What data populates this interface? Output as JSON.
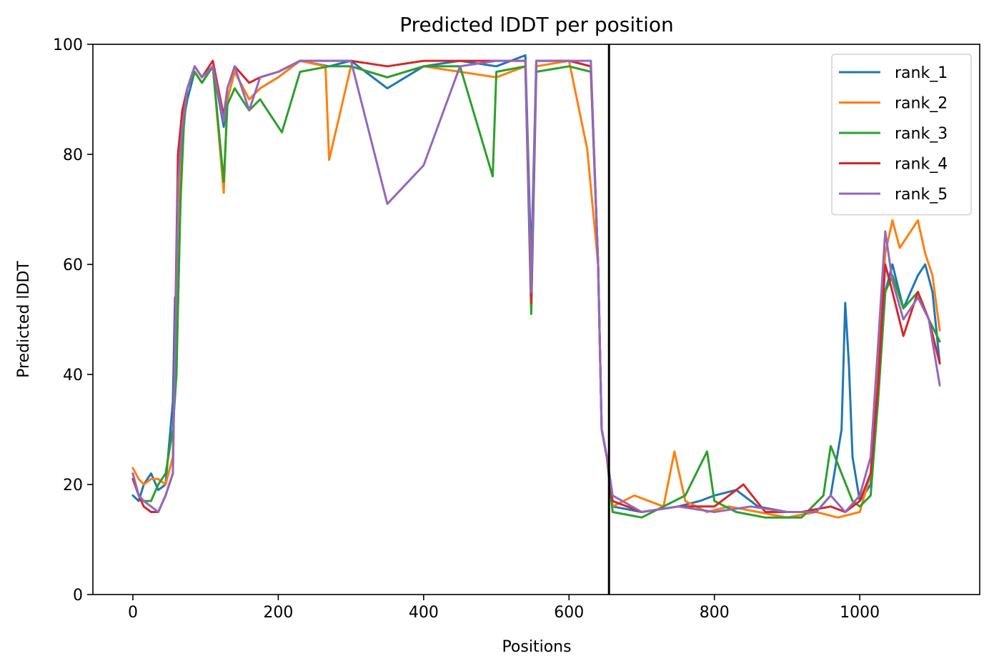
{
  "chart_data": {
    "type": "line",
    "title": "Predicted lDDT per position",
    "xlabel": "Positions",
    "ylabel": "Predicted lDDT",
    "xlim": [
      -55,
      1165
    ],
    "ylim": [
      0,
      100
    ],
    "xticks": [
      0,
      200,
      400,
      600,
      800,
      1000
    ],
    "yticks": [
      0,
      20,
      40,
      60,
      80,
      100
    ],
    "grid": false,
    "legend_position": "top-right",
    "vline": {
      "x": 655,
      "color": "#000000"
    },
    "series": [
      {
        "name": "rank_1",
        "color": "#1f77b4",
        "x": [
          0,
          8,
          15,
          25,
          35,
          45,
          55,
          58,
          62,
          68,
          75,
          85,
          95,
          110,
          125,
          130,
          140,
          160,
          175,
          200,
          230,
          270,
          300,
          350,
          400,
          450,
          500,
          540,
          548,
          555,
          600,
          630,
          640,
          645,
          652,
          660,
          700,
          750,
          780,
          800,
          830,
          860,
          900,
          940,
          960,
          975,
          980,
          985,
          990,
          1000,
          1015,
          1025,
          1035,
          1045,
          1060,
          1080,
          1090,
          1100,
          1110
        ],
        "y": [
          18,
          17,
          20,
          22,
          19,
          20,
          35,
          54,
          52,
          85,
          90,
          95,
          93,
          96,
          85,
          90,
          95,
          90,
          92,
          94,
          97,
          96,
          97,
          92,
          96,
          97,
          96,
          98,
          60,
          97,
          97,
          96,
          60,
          30,
          25,
          16,
          15,
          16,
          17,
          18,
          19,
          16,
          15,
          15,
          18,
          30,
          53,
          42,
          25,
          17,
          20,
          35,
          55,
          60,
          52,
          58,
          60,
          55,
          42
        ]
      },
      {
        "name": "rank_2",
        "color": "#ff7f0e",
        "x": [
          0,
          8,
          15,
          25,
          35,
          45,
          55,
          62,
          68,
          75,
          85,
          95,
          110,
          125,
          130,
          140,
          160,
          175,
          200,
          230,
          265,
          270,
          300,
          350,
          400,
          450,
          500,
          540,
          548,
          555,
          600,
          625,
          640,
          645,
          652,
          660,
          690,
          730,
          745,
          760,
          790,
          820,
          860,
          900,
          940,
          970,
          1000,
          1015,
          1025,
          1035,
          1045,
          1055,
          1065,
          1080,
          1090,
          1100,
          1110
        ],
        "y": [
          23,
          21,
          20,
          21,
          21,
          20,
          25,
          70,
          87,
          92,
          95,
          93,
          96,
          73,
          90,
          95,
          90,
          92,
          94,
          97,
          96,
          79,
          96,
          94,
          96,
          95,
          94,
          96,
          55,
          96,
          97,
          81,
          60,
          30,
          25,
          16,
          18,
          16,
          26,
          17,
          15,
          16,
          15,
          14,
          15,
          14,
          15,
          22,
          40,
          62,
          68,
          63,
          65,
          68,
          62,
          58,
          48
        ]
      },
      {
        "name": "rank_3",
        "color": "#2ca02c",
        "x": [
          0,
          8,
          15,
          25,
          35,
          45,
          55,
          60,
          65,
          70,
          75,
          85,
          95,
          110,
          125,
          130,
          140,
          160,
          175,
          205,
          230,
          270,
          300,
          350,
          400,
          450,
          495,
          500,
          540,
          548,
          555,
          600,
          630,
          640,
          645,
          652,
          660,
          700,
          760,
          790,
          800,
          830,
          870,
          920,
          950,
          960,
          975,
          990,
          1000,
          1015,
          1025,
          1035,
          1045,
          1060,
          1080,
          1095,
          1110
        ],
        "y": [
          22,
          18,
          17,
          17,
          20,
          22,
          30,
          40,
          70,
          85,
          92,
          95,
          93,
          96,
          75,
          89,
          92,
          88,
          90,
          84,
          95,
          96,
          96,
          94,
          96,
          96,
          76,
          95,
          96,
          51,
          95,
          96,
          95,
          60,
          30,
          25,
          15,
          14,
          18,
          26,
          17,
          15,
          14,
          14,
          18,
          27,
          22,
          17,
          16,
          18,
          35,
          55,
          58,
          52,
          55,
          50,
          46
        ]
      },
      {
        "name": "rank_4",
        "color": "#d62728",
        "x": [
          0,
          8,
          15,
          25,
          35,
          45,
          55,
          62,
          68,
          75,
          85,
          95,
          110,
          125,
          130,
          140,
          160,
          175,
          200,
          230,
          270,
          300,
          350,
          400,
          450,
          500,
          540,
          548,
          555,
          600,
          630,
          640,
          645,
          652,
          660,
          700,
          750,
          800,
          840,
          870,
          920,
          960,
          980,
          1000,
          1015,
          1025,
          1035,
          1045,
          1060,
          1080,
          1095,
          1110
        ],
        "y": [
          21,
          18,
          16,
          15,
          15,
          18,
          22,
          80,
          88,
          92,
          96,
          94,
          97,
          87,
          92,
          96,
          93,
          94,
          95,
          97,
          97,
          97,
          96,
          97,
          97,
          97,
          97,
          53,
          97,
          97,
          96,
          60,
          30,
          25,
          17,
          15,
          16,
          16,
          20,
          15,
          15,
          16,
          15,
          17,
          22,
          38,
          60,
          55,
          47,
          55,
          50,
          42
        ]
      },
      {
        "name": "rank_5",
        "color": "#9467bd",
        "x": [
          0,
          8,
          15,
          25,
          35,
          45,
          55,
          62,
          68,
          75,
          85,
          95,
          110,
          125,
          130,
          140,
          160,
          175,
          200,
          230,
          270,
          300,
          350,
          400,
          450,
          500,
          540,
          548,
          555,
          600,
          630,
          640,
          645,
          652,
          660,
          700,
          750,
          800,
          850,
          900,
          940,
          960,
          980,
          1000,
          1015,
          1025,
          1035,
          1045,
          1060,
          1080,
          1095,
          1110
        ],
        "y": [
          22,
          18,
          17,
          16,
          15,
          18,
          22,
          75,
          85,
          92,
          96,
          94,
          96,
          86,
          92,
          96,
          88,
          94,
          95,
          97,
          97,
          97,
          71,
          78,
          96,
          97,
          97,
          55,
          97,
          97,
          97,
          60,
          30,
          25,
          18,
          15,
          16,
          15,
          16,
          15,
          15,
          18,
          15,
          18,
          25,
          45,
          66,
          57,
          50,
          54,
          50,
          38
        ]
      }
    ]
  }
}
